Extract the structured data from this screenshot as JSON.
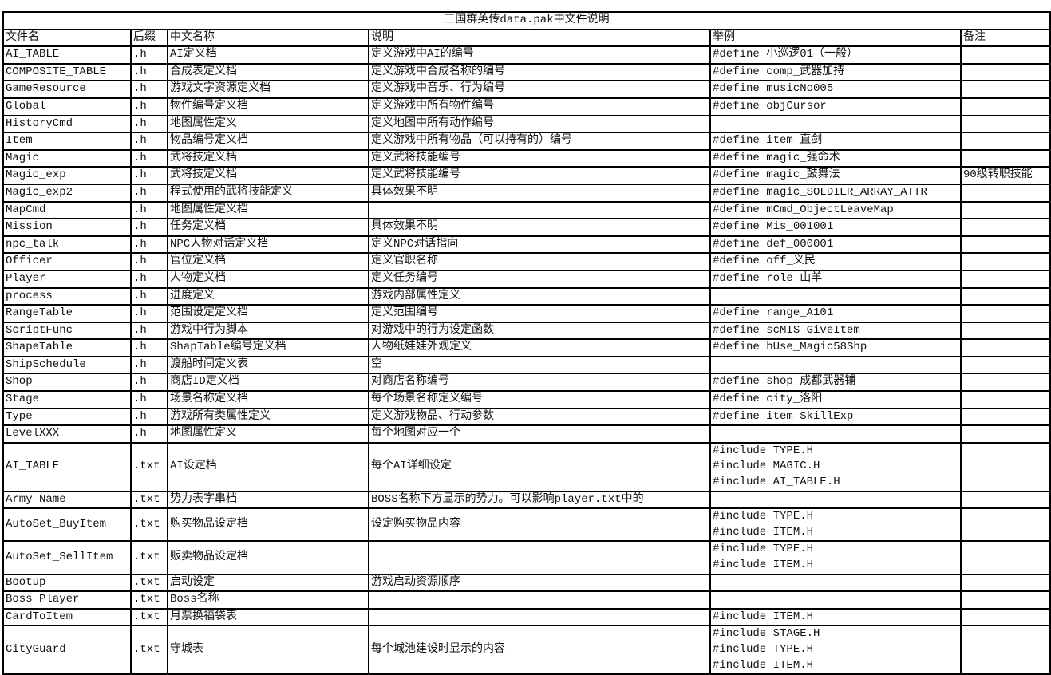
{
  "title": "三国群英传data.pak中文件说明",
  "columns": [
    "文件名",
    "后缀",
    "中文名称",
    "说明",
    "举例",
    "备注"
  ],
  "rows": [
    [
      "AI_TABLE",
      ".h",
      "AI定义档",
      "定义游戏中AI的编号",
      "#define 小巡逻01（一般）",
      ""
    ],
    [
      "COMPOSITE_TABLE",
      ".h",
      "合成表定义档",
      "定义游戏中合成名称的编号",
      "#define comp_武器加持",
      ""
    ],
    [
      "GameResource",
      ".h",
      "游戏文字资源定义档",
      "定义游戏中音乐、行为编号",
      "#define musicNo005",
      ""
    ],
    [
      "Global",
      ".h",
      "物件编号定义档",
      "定义游戏中所有物件编号",
      "#define objCursor",
      ""
    ],
    [
      "HistoryCmd",
      ".h",
      "地图属性定义",
      "定义地图中所有动作编号",
      "",
      ""
    ],
    [
      "Item",
      ".h",
      "物品编号定义档",
      "定义游戏中所有物品（可以持有的）编号",
      "#define item_直剑",
      ""
    ],
    [
      "Magic",
      ".h",
      "武将技定义档",
      "定义武将技能编号",
      "#define magic_强命术",
      ""
    ],
    [
      "Magic_exp",
      ".h",
      "武将技定义档",
      "定义武将技能编号",
      "#define magic_鼓舞法",
      "90级转职技能"
    ],
    [
      "Magic_exp2",
      ".h",
      "程式使用的武将技能定义",
      "具体效果不明",
      "#define magic_SOLDIER_ARRAY_ATTR",
      ""
    ],
    [
      "MapCmd",
      ".h",
      "地图属性定义档",
      "",
      "#define mCmd_ObjectLeaveMap",
      ""
    ],
    [
      "Mission",
      ".h",
      "任务定义档",
      "具体效果不明",
      "#define Mis_001001",
      ""
    ],
    [
      "npc_talk",
      ".h",
      "NPC人物对话定义档",
      "定义NPC对话指向",
      "#define def_000001",
      ""
    ],
    [
      "Officer",
      ".h",
      "官位定义档",
      "定义官职名称",
      "#define off_义民",
      ""
    ],
    [
      "Player",
      ".h",
      "人物定义档",
      "定义任务编号",
      "#define role_山羊",
      ""
    ],
    [
      "process",
      ".h",
      "进度定义",
      "游戏内部属性定义",
      "",
      ""
    ],
    [
      "RangeTable",
      ".h",
      "范围设定定义档",
      "定义范围编号",
      "#define range_A101",
      ""
    ],
    [
      "ScriptFunc",
      ".h",
      "游戏中行为脚本",
      "对游戏中的行为设定函数",
      "#define scMIS_GiveItem",
      ""
    ],
    [
      "ShapeTable",
      ".h",
      "ShapTable编号定义档",
      "人物纸娃娃外观定义",
      "#define hUse_Magic58Shp",
      ""
    ],
    [
      "ShipSchedule",
      ".h",
      "渡船时间定义表",
      "空",
      "",
      ""
    ],
    [
      "Shop",
      ".h",
      "商店ID定义档",
      "对商店名称编号",
      "#define shop_成都武器铺",
      ""
    ],
    [
      "Stage",
      ".h",
      "场景名称定义档",
      "每个场景名称定义编号",
      "#define city_洛阳",
      ""
    ],
    [
      "Type",
      ".h",
      "游戏所有类属性定义",
      "定义游戏物品、行动参数",
      "#define item_SkillExp",
      ""
    ],
    [
      "LevelXXX",
      ".h",
      "地图属性定义",
      "每个地图对应一个",
      "",
      ""
    ],
    [
      "AI_TABLE",
      ".txt",
      "AI设定档",
      "每个AI详细设定",
      [
        "#include TYPE.H",
        "#include MAGIC.H",
        "#include AI_TABLE.H"
      ],
      ""
    ],
    [
      "Army_Name",
      ".txt",
      "势力表字串档",
      "BOSS名称下方显示的势力。可以影响player.txt中的",
      "",
      ""
    ],
    [
      "AutoSet_BuyItem",
      ".txt",
      "购买物品设定档",
      "设定购买物品内容",
      [
        "#include TYPE.H",
        "#include ITEM.H"
      ],
      ""
    ],
    [
      "AutoSet_SellItem",
      ".txt",
      "贩卖物品设定档",
      "",
      [
        "#include TYPE.H",
        "#include ITEM.H"
      ],
      ""
    ],
    [
      "Bootup",
      ".txt",
      "启动设定",
      "游戏启动资源顺序",
      "",
      ""
    ],
    [
      "Boss Player",
      ".txt",
      "Boss名称",
      "",
      "",
      ""
    ],
    [
      "CardToItem",
      ".txt",
      "月票换福袋表",
      "",
      "#include ITEM.H",
      ""
    ],
    [
      "CityGuard",
      ".txt",
      "守城表",
      "每个城池建设时显示的内容",
      [
        "#include STAGE.H",
        "#include TYPE.H",
        "#include ITEM.H"
      ],
      ""
    ]
  ]
}
